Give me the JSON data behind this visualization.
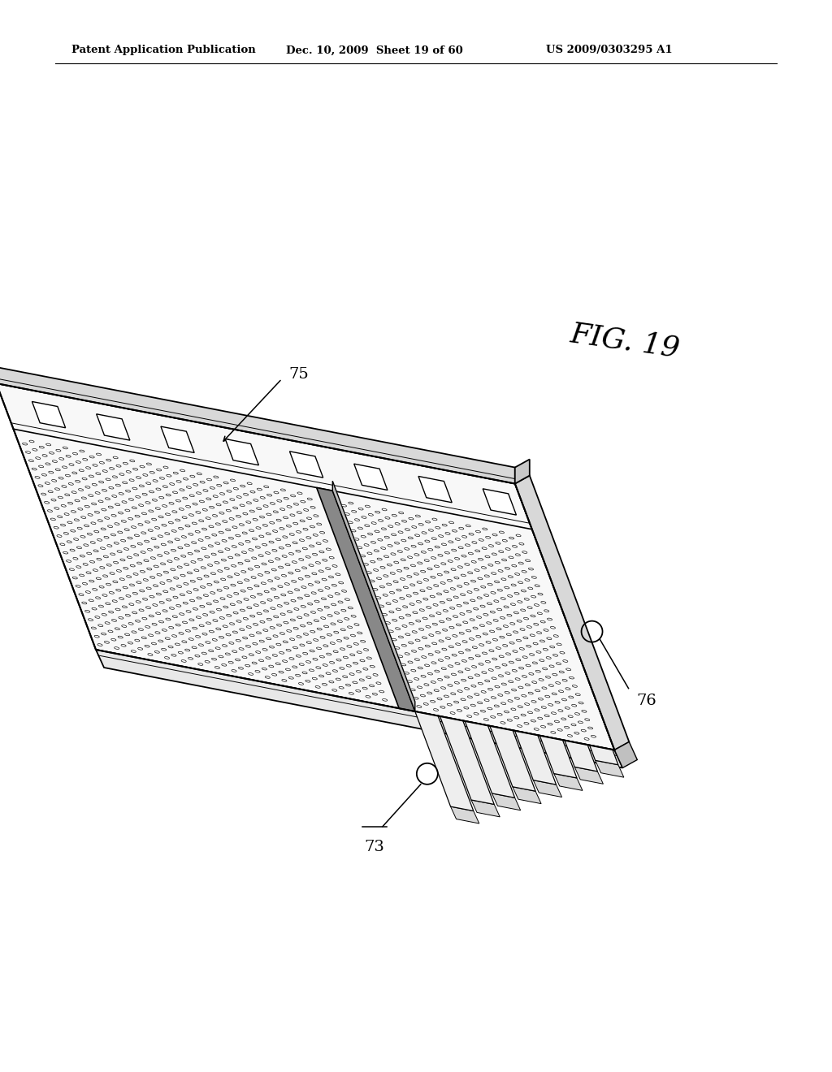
{
  "background_color": "#ffffff",
  "header_left": "Patent Application Publication",
  "header_mid": "Dec. 10, 2009  Sheet 19 of 60",
  "header_right": "US 2009/0303295 A1",
  "fig_label": "FIG. 19",
  "ref_73": "73",
  "ref_75": "75",
  "ref_76": "76",
  "line_color": "#000000",
  "face_color_top": "#f8f8f8",
  "face_color_front": "#e8e8e8",
  "face_color_right": "#d8d8d8",
  "face_color_slot": "#ffffff"
}
